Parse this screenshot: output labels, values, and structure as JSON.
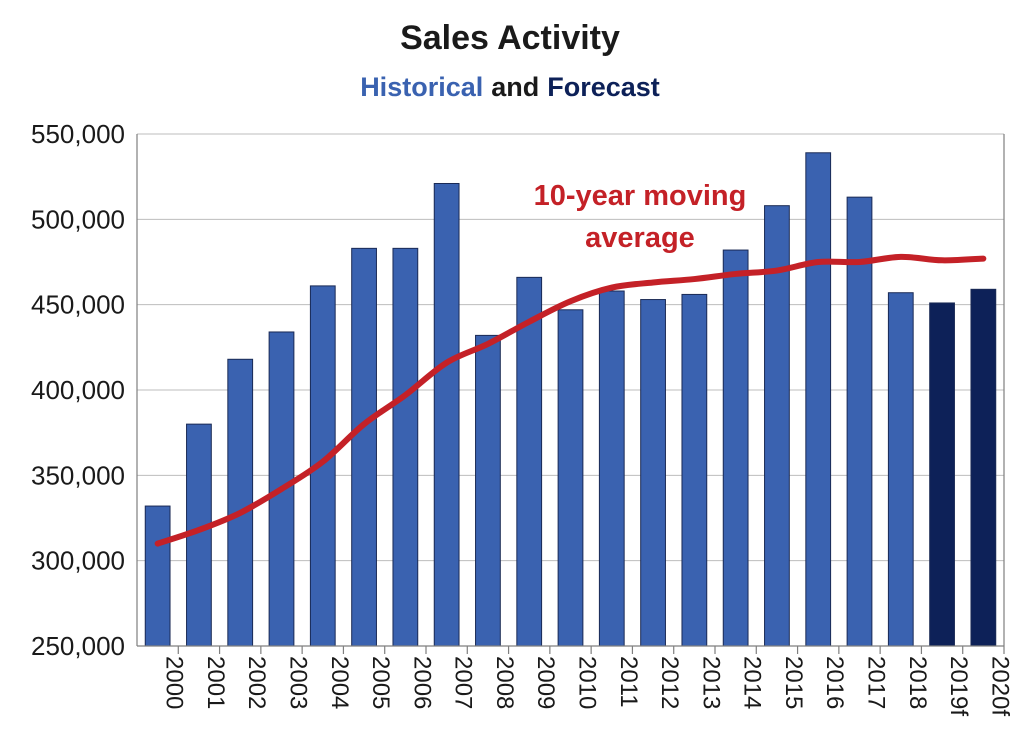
{
  "chart_data": {
    "type": "bar",
    "title": "Sales Activity",
    "subtitle": {
      "historical": "Historical",
      "and": "and",
      "forecast": "Forecast"
    },
    "categories": [
      "2000",
      "2001",
      "2002",
      "2003",
      "2004",
      "2005",
      "2006",
      "2007",
      "2008",
      "2009",
      "2010",
      "2011",
      "2012",
      "2013",
      "2014",
      "2015",
      "2016",
      "2017",
      "2018",
      "2019f",
      "2020f"
    ],
    "series": [
      {
        "values": [
          332000,
          380000,
          418000,
          434000,
          461000,
          483000,
          483000,
          521000,
          432000,
          466000,
          447000,
          458000,
          453000,
          456000,
          482000,
          508000,
          539000,
          513000,
          457000,
          451000,
          459000
        ],
        "kind": "bar"
      },
      {
        "values": [
          310000,
          318000,
          328000,
          342000,
          358000,
          380000,
          397000,
          416000,
          427000,
          440000,
          452000,
          460000,
          463000,
          465000,
          468000,
          470000,
          475000,
          475000,
          478000,
          476000,
          477000
        ],
        "kind": "line"
      }
    ],
    "forecast_categories": [
      "2019f",
      "2020f"
    ],
    "annotation": [
      "10-year moving",
      "average"
    ],
    "y_ticks": [
      "250,000",
      "300,000",
      "350,000",
      "400,000",
      "450,000",
      "500,000",
      "550,000"
    ],
    "ylim": [
      250000,
      550000
    ],
    "grid": true,
    "xlabel": "",
    "ylabel": "",
    "colors": {
      "historical": "#3a62b0",
      "forecast": "#0d2158",
      "line": "#c42127",
      "subtitle_historical": "#3a62b0",
      "subtitle_forecast": "#0d2158",
      "subtitle_and": "#1a1a1a"
    }
  }
}
